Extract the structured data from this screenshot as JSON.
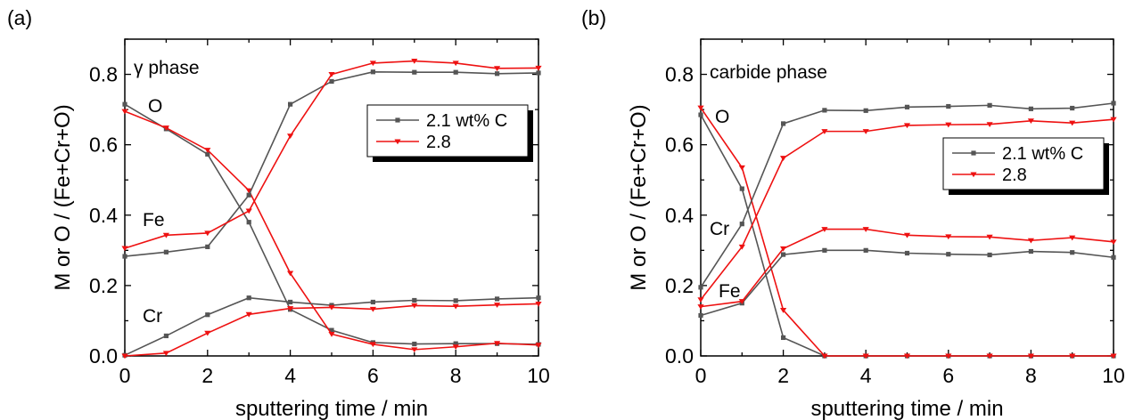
{
  "colors": {
    "series_2_1": "#555555",
    "series_2_8": "#ee1111",
    "axis": "#000000"
  },
  "chart_data": [
    {
      "type": "line",
      "panel_label": "(a)",
      "title": "γ phase",
      "xlabel": "sputtering time / min",
      "ylabel": "M or O / (Fe+Cr+O)",
      "xlim": [
        0,
        10
      ],
      "ylim": [
        0,
        0.9
      ],
      "xticks": [
        "0",
        "2",
        "4",
        "6",
        "8",
        "10"
      ],
      "yticks": [
        "0.0",
        "0.2",
        "0.4",
        "0.6",
        "0.8"
      ],
      "grid": false,
      "legend_placement": "top-right",
      "legend": [
        "2.1 wt% C",
        "2.8"
      ],
      "annotations": [
        {
          "text": "O",
          "x": 0.6,
          "y": 0.74
        },
        {
          "text": "Fe",
          "x": 0.5,
          "y": 0.38
        },
        {
          "text": "Cr",
          "x": 0.5,
          "y": 0.115
        }
      ],
      "x": [
        0,
        1,
        2,
        3,
        4,
        5,
        6,
        7,
        8,
        9,
        10
      ],
      "series": [
        {
          "name": "2.1 wt% C",
          "element": "O",
          "marker": "square",
          "color": "#555555",
          "values": [
            0.715,
            0.645,
            0.573,
            0.38,
            0.132,
            0.073,
            0.038,
            0.034,
            0.035,
            0.035,
            0.033
          ]
        },
        {
          "name": "2.8",
          "element": "O",
          "marker": "triangle-down",
          "color": "#ee1111",
          "values": [
            0.695,
            0.648,
            0.585,
            0.47,
            0.235,
            0.062,
            0.033,
            0.018,
            0.026,
            0.036,
            0.031
          ]
        },
        {
          "name": "2.1 wt% C",
          "element": "Fe",
          "marker": "square",
          "color": "#555555",
          "values": [
            0.283,
            0.295,
            0.31,
            0.457,
            0.715,
            0.78,
            0.807,
            0.806,
            0.806,
            0.802,
            0.804
          ]
        },
        {
          "name": "2.8",
          "element": "Fe",
          "marker": "triangle-down",
          "color": "#ee1111",
          "values": [
            0.306,
            0.343,
            0.349,
            0.412,
            0.625,
            0.8,
            0.832,
            0.838,
            0.832,
            0.817,
            0.818
          ]
        },
        {
          "name": "2.1 wt% C",
          "element": "Cr",
          "marker": "square",
          "color": "#555555",
          "values": [
            0.002,
            0.057,
            0.117,
            0.165,
            0.153,
            0.144,
            0.153,
            0.158,
            0.157,
            0.162,
            0.165
          ]
        },
        {
          "name": "2.8",
          "element": "Cr",
          "marker": "triangle-down",
          "color": "#ee1111",
          "values": [
            0.0,
            0.008,
            0.065,
            0.118,
            0.135,
            0.138,
            0.133,
            0.143,
            0.141,
            0.145,
            0.148
          ]
        }
      ]
    },
    {
      "type": "line",
      "panel_label": "(b)",
      "title": "carbide phase",
      "xlabel": "sputtering time / min",
      "ylabel": "M or O / (Fe+Cr+O)",
      "xlim": [
        0,
        10
      ],
      "ylim": [
        0,
        0.9
      ],
      "xticks": [
        "0",
        "2",
        "4",
        "6",
        "8",
        "10"
      ],
      "yticks": [
        "0.0",
        "0.2",
        "0.4",
        "0.6",
        "0.8"
      ],
      "grid": false,
      "legend_placement": "right",
      "legend": [
        "2.1 wt% C",
        "2.8"
      ],
      "annotations": [
        {
          "text": "O",
          "x": 0.7,
          "y": 0.69
        },
        {
          "text": "Cr",
          "x": 0.25,
          "y": 0.33
        },
        {
          "text": "Fe",
          "x": 0.45,
          "y": 0.16
        }
      ],
      "x": [
        0,
        1,
        2,
        3,
        4,
        5,
        6,
        7,
        8,
        9,
        10
      ],
      "series": [
        {
          "name": "2.1 wt% C",
          "element": "O",
          "marker": "square",
          "color": "#555555",
          "values": [
            0.685,
            0.475,
            0.052,
            0.0,
            0.0,
            0.0,
            0.0,
            0.0,
            0.0,
            0.0,
            0.0
          ]
        },
        {
          "name": "2.8",
          "element": "O",
          "marker": "triangle-down",
          "color": "#ee1111",
          "values": [
            0.705,
            0.535,
            0.13,
            0.0,
            0.0,
            0.0,
            0.0,
            0.0,
            0.0,
            0.0,
            0.0
          ]
        },
        {
          "name": "2.1 wt% C",
          "element": "Cr",
          "marker": "square",
          "color": "#555555",
          "values": [
            0.195,
            0.375,
            0.66,
            0.698,
            0.697,
            0.707,
            0.709,
            0.712,
            0.702,
            0.704,
            0.718
          ]
        },
        {
          "name": "2.8",
          "element": "Cr",
          "marker": "triangle-down",
          "color": "#ee1111",
          "values": [
            0.16,
            0.31,
            0.562,
            0.638,
            0.638,
            0.655,
            0.657,
            0.658,
            0.668,
            0.662,
            0.672
          ]
        },
        {
          "name": "2.1 wt% C",
          "element": "Fe",
          "marker": "square",
          "color": "#555555",
          "values": [
            0.115,
            0.15,
            0.288,
            0.3,
            0.3,
            0.292,
            0.289,
            0.287,
            0.297,
            0.294,
            0.28
          ]
        },
        {
          "name": "2.8",
          "element": "Fe",
          "marker": "triangle-down",
          "color": "#ee1111",
          "values": [
            0.14,
            0.155,
            0.305,
            0.36,
            0.36,
            0.343,
            0.339,
            0.338,
            0.328,
            0.336,
            0.324
          ]
        }
      ]
    }
  ]
}
